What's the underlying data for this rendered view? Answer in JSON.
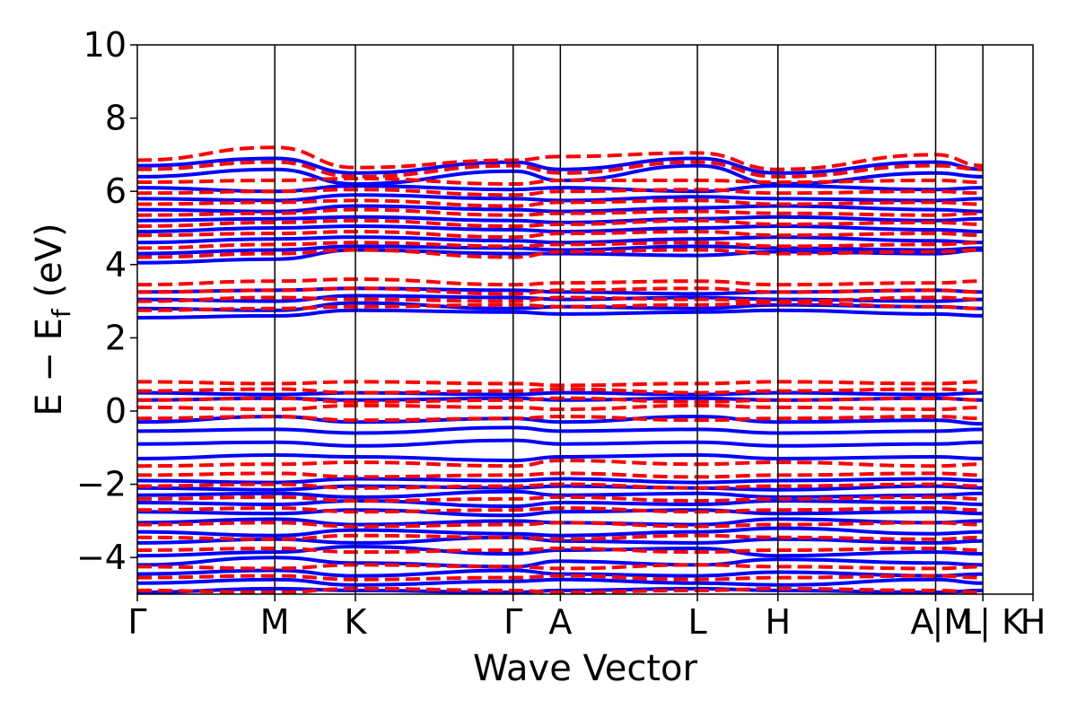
{
  "chart_data": {
    "type": "line",
    "xlabel": "Wave Vector",
    "ylabel_parts": {
      "main": "E − E",
      "sub": "f",
      "unit": " (eV)"
    },
    "ylim": [
      -5,
      10
    ],
    "yticks": [
      -4,
      -2,
      0,
      2,
      4,
      6,
      8,
      10
    ],
    "ytick_labels": [
      "−4",
      "−2",
      "0",
      "2",
      "4",
      "6",
      "8",
      "10"
    ],
    "xlim": [
      0,
      1
    ],
    "kpoints": [
      {
        "label": "Γ",
        "x": 0.0
      },
      {
        "label": "M",
        "x": 0.1535
      },
      {
        "label": "K",
        "x": 0.2435
      },
      {
        "label": "Γ",
        "x": 0.4196
      },
      {
        "label": "A",
        "x": 0.4723
      },
      {
        "label": "L",
        "x": 0.6253
      },
      {
        "label": "H",
        "x": 0.7152
      },
      {
        "label": "A",
        "x": 0.8913
      },
      {
        "label": "|M",
        "x": 0.8913
      },
      {
        "label": "L",
        "x": 0.944
      },
      {
        "label": "| K",
        "x": 0.944
      },
      {
        "label": "H",
        "x": 1.0
      }
    ],
    "kpoint_lines_x": [
      0.1535,
      0.2435,
      0.4196,
      0.4723,
      0.6253,
      0.7152,
      0.8913,
      0.944
    ],
    "series": [
      {
        "style": "solid",
        "color": "#0000ff",
        "bands": [
          [
            -4.95,
            -4.85,
            -4.9,
            -4.95,
            -4.9,
            -4.85,
            -4.9,
            -4.95,
            -4.9
          ],
          [
            -4.7,
            -4.6,
            -4.75,
            -4.65,
            -4.6,
            -4.7,
            -4.75,
            -4.6,
            -4.7
          ],
          [
            -4.45,
            -4.35,
            -4.5,
            -4.35,
            -4.45,
            -4.5,
            -4.4,
            -4.5,
            -4.45
          ],
          [
            -4.2,
            -4.0,
            -4.15,
            -4.25,
            -4.1,
            -4.2,
            -4.05,
            -4.15,
            -4.2
          ],
          [
            -3.95,
            -3.85,
            -3.7,
            -3.9,
            -3.8,
            -3.75,
            -3.95,
            -3.85,
            -3.9
          ],
          [
            -3.6,
            -3.5,
            -3.6,
            -3.45,
            -3.55,
            -3.6,
            -3.5,
            -3.6,
            -3.55
          ],
          [
            -3.3,
            -3.4,
            -3.25,
            -3.35,
            -3.4,
            -3.3,
            -3.2,
            -3.35,
            -3.3
          ],
          [
            -3.05,
            -2.95,
            -3.1,
            -3.0,
            -3.05,
            -3.1,
            -2.95,
            -3.05,
            -3.0
          ],
          [
            -2.75,
            -2.8,
            -2.7,
            -2.85,
            -2.75,
            -2.7,
            -2.8,
            -2.75,
            -2.8
          ],
          [
            -2.5,
            -2.55,
            -2.45,
            -2.6,
            -2.5,
            -2.55,
            -2.45,
            -2.5,
            -2.55
          ],
          [
            -2.3,
            -2.25,
            -2.35,
            -2.2,
            -2.3,
            -2.25,
            -2.35,
            -2.3,
            -2.25
          ],
          [
            -2.1,
            -2.15,
            -2.05,
            -2.1,
            -2.05,
            -2.1,
            -2.15,
            -2.05,
            -2.1
          ],
          [
            -1.9,
            -1.95,
            -1.85,
            -1.9,
            -1.85,
            -1.95,
            -1.9,
            -1.85,
            -1.9
          ],
          [
            -1.3,
            -1.2,
            -1.25,
            -1.35,
            -1.25,
            -1.2,
            -1.3,
            -1.25,
            -1.3
          ],
          [
            -0.9,
            -0.85,
            -0.95,
            -0.8,
            -0.9,
            -0.85,
            -0.95,
            -0.9,
            -0.85
          ],
          [
            -0.55,
            -0.5,
            -0.6,
            -0.45,
            -0.55,
            -0.5,
            -0.6,
            -0.55,
            -0.5
          ],
          [
            -0.3,
            -0.15,
            -0.3,
            -0.2,
            -0.3,
            -0.15,
            -0.3,
            -0.25,
            -0.35
          ],
          [
            0.3,
            0.35,
            0.3,
            0.35,
            0.3,
            0.35,
            0.3,
            0.35,
            0.3
          ],
          [
            0.5,
            0.45,
            0.5,
            0.45,
            0.5,
            0.45,
            0.5,
            0.45,
            0.5
          ],
          [
            2.55,
            2.6,
            2.75,
            2.7,
            2.65,
            2.7,
            2.75,
            2.65,
            2.6
          ],
          [
            2.8,
            2.75,
            2.95,
            2.8,
            2.85,
            2.8,
            2.9,
            2.85,
            2.8
          ],
          [
            3.05,
            3.0,
            3.15,
            3.1,
            3.05,
            3.1,
            3.05,
            3.0,
            3.05
          ],
          [
            3.25,
            3.3,
            3.35,
            3.3,
            3.25,
            3.2,
            3.25,
            3.3,
            3.25
          ],
          [
            4.05,
            4.15,
            4.4,
            4.3,
            4.3,
            4.25,
            4.35,
            4.3,
            4.4
          ],
          [
            4.3,
            4.4,
            4.5,
            4.45,
            4.4,
            4.5,
            4.45,
            4.4,
            4.45
          ],
          [
            4.6,
            4.7,
            4.75,
            4.65,
            4.6,
            4.7,
            4.75,
            4.65,
            4.6
          ],
          [
            4.9,
            5.0,
            5.05,
            4.95,
            4.9,
            5.0,
            5.05,
            4.95,
            4.9
          ],
          [
            5.2,
            5.25,
            5.3,
            5.2,
            5.15,
            5.25,
            5.3,
            5.2,
            5.25
          ],
          [
            5.5,
            5.45,
            5.6,
            5.5,
            5.45,
            5.55,
            5.6,
            5.5,
            5.45
          ],
          [
            5.8,
            5.75,
            5.9,
            5.8,
            5.75,
            5.85,
            5.8,
            5.75,
            5.8
          ],
          [
            6.1,
            6.0,
            6.15,
            6.05,
            6.1,
            6.0,
            6.15,
            6.05,
            6.1
          ],
          [
            6.4,
            6.6,
            6.2,
            6.55,
            6.3,
            6.7,
            6.2,
            6.5,
            6.4
          ],
          [
            6.7,
            6.9,
            6.5,
            6.8,
            6.6,
            6.9,
            6.5,
            6.8,
            6.6
          ]
        ]
      },
      {
        "style": "dashed",
        "color": "#ff0000",
        "bands": [
          [
            -4.9,
            -4.95,
            -4.85,
            -4.9,
            -4.95,
            -4.9,
            -4.85,
            -4.9,
            -4.95
          ],
          [
            -4.55,
            -4.5,
            -4.6,
            -4.55,
            -4.5,
            -4.6,
            -4.55,
            -4.5,
            -4.55
          ],
          [
            -4.25,
            -4.3,
            -4.2,
            -4.25,
            -4.3,
            -4.2,
            -4.25,
            -4.3,
            -4.25
          ],
          [
            -3.8,
            -3.75,
            -3.85,
            -3.8,
            -3.75,
            -3.85,
            -3.8,
            -3.75,
            -3.8
          ],
          [
            -3.45,
            -3.5,
            -3.4,
            -3.45,
            -3.5,
            -3.4,
            -3.45,
            -3.5,
            -3.45
          ],
          [
            -3.1,
            -3.05,
            -3.15,
            -3.1,
            -3.05,
            -3.15,
            -3.1,
            -3.05,
            -3.1
          ],
          [
            -2.7,
            -2.65,
            -2.75,
            -2.7,
            -2.65,
            -2.75,
            -2.7,
            -2.65,
            -2.7
          ],
          [
            -2.4,
            -2.35,
            -2.45,
            -2.4,
            -2.35,
            -2.45,
            -2.4,
            -2.35,
            -2.4
          ],
          [
            -2.05,
            -2.0,
            -2.1,
            -2.05,
            -2.0,
            -2.1,
            -2.05,
            -2.0,
            -2.05
          ],
          [
            -1.75,
            -1.7,
            -1.8,
            -1.75,
            -1.7,
            -1.8,
            -1.75,
            -1.7,
            -1.75
          ],
          [
            -1.5,
            -1.45,
            -1.4,
            -1.5,
            -1.35,
            -1.45,
            -1.4,
            -1.5,
            -1.45
          ],
          [
            -0.2,
            -0.15,
            -0.25,
            -0.2,
            -0.15,
            -0.25,
            -0.2,
            -0.15,
            -0.2
          ],
          [
            0.1,
            0.05,
            0.15,
            0.1,
            0.05,
            0.15,
            0.1,
            0.05,
            0.1
          ],
          [
            0.3,
            0.35,
            0.25,
            0.3,
            0.35,
            0.25,
            0.3,
            0.35,
            0.3
          ],
          [
            0.55,
            0.6,
            0.5,
            0.55,
            0.6,
            0.5,
            0.55,
            0.6,
            0.55
          ],
          [
            0.8,
            0.75,
            0.8,
            0.75,
            0.7,
            0.75,
            0.8,
            0.75,
            0.8
          ],
          [
            2.75,
            2.8,
            2.85,
            2.9,
            2.85,
            2.9,
            2.95,
            2.85,
            2.8
          ],
          [
            3.0,
            3.1,
            3.05,
            3.0,
            3.1,
            3.05,
            3.0,
            3.1,
            3.05
          ],
          [
            3.25,
            3.3,
            3.35,
            3.2,
            3.3,
            3.35,
            3.25,
            3.3,
            3.25
          ],
          [
            3.45,
            3.55,
            3.6,
            3.45,
            3.5,
            3.55,
            3.45,
            3.5,
            3.55
          ],
          [
            4.2,
            4.3,
            4.4,
            4.2,
            4.35,
            4.4,
            4.3,
            4.35,
            4.4
          ],
          [
            4.45,
            4.55,
            4.6,
            4.5,
            4.55,
            4.6,
            4.5,
            4.55,
            4.6
          ],
          [
            4.8,
            4.85,
            4.9,
            4.75,
            4.85,
            4.9,
            4.8,
            4.85,
            4.8
          ],
          [
            5.05,
            5.15,
            5.2,
            5.05,
            5.1,
            5.2,
            5.1,
            5.15,
            5.1
          ],
          [
            5.35,
            5.4,
            5.5,
            5.35,
            5.4,
            5.45,
            5.4,
            5.35,
            5.4
          ],
          [
            5.65,
            5.7,
            5.75,
            5.6,
            5.7,
            5.75,
            5.65,
            5.7,
            5.65
          ],
          [
            5.95,
            6.0,
            6.05,
            5.9,
            6.0,
            6.05,
            5.95,
            6.0,
            5.95
          ],
          [
            6.25,
            6.3,
            6.35,
            6.2,
            6.3,
            6.3,
            6.25,
            6.3,
            6.25
          ],
          [
            6.6,
            6.8,
            6.4,
            6.7,
            6.5,
            6.8,
            6.4,
            6.7,
            6.6
          ],
          [
            6.85,
            7.2,
            6.65,
            6.85,
            6.95,
            7.05,
            6.6,
            7.0,
            6.7
          ]
        ]
      }
    ]
  }
}
